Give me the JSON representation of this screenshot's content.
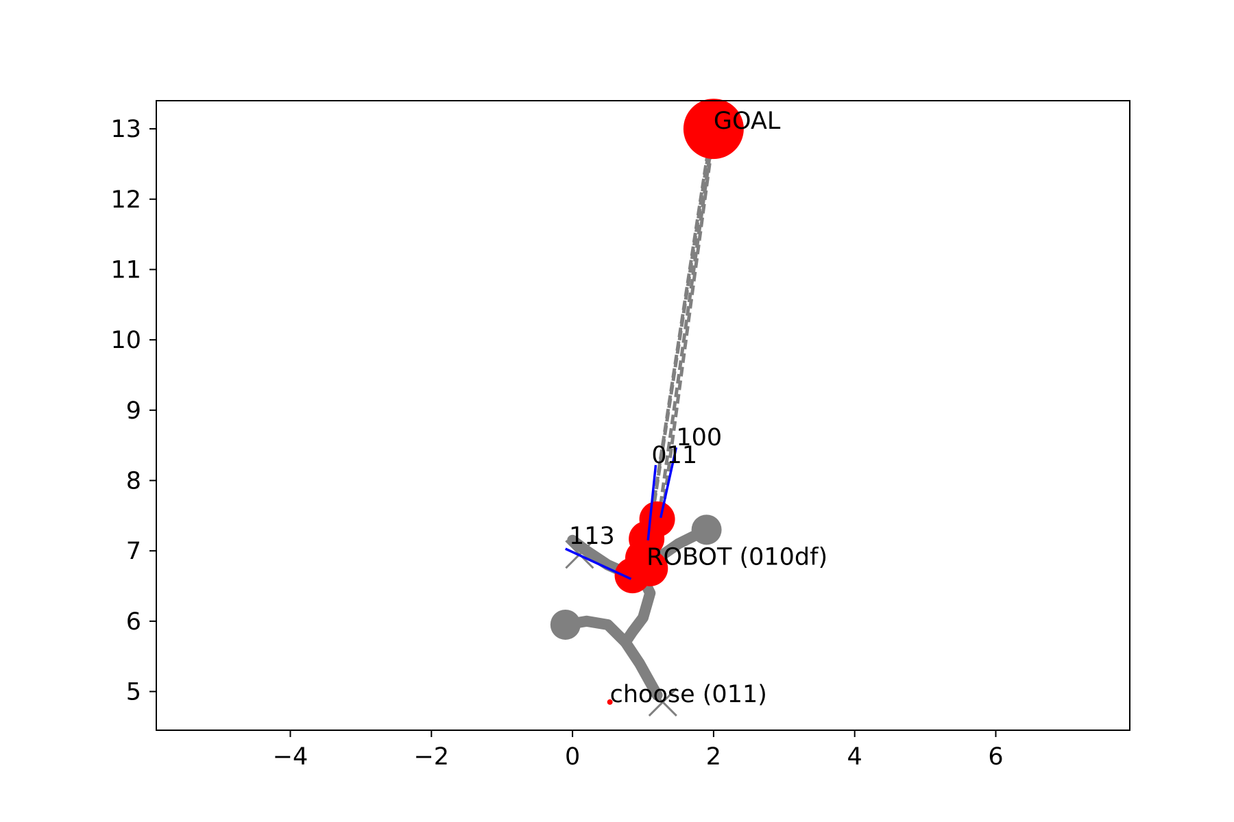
{
  "chart_data": {
    "type": "scatter",
    "title": "",
    "xlabel": "",
    "ylabel": "",
    "xlim": [
      -5.9,
      7.9
    ],
    "ylim": [
      4.45,
      13.4
    ],
    "xticks": [
      -4,
      -2,
      0,
      2,
      4,
      6
    ],
    "xtick_labels": [
      "−4",
      "−2",
      "0",
      "2",
      "4",
      "6"
    ],
    "yticks": [
      5,
      6,
      7,
      8,
      9,
      10,
      11,
      12,
      13
    ],
    "ytick_labels": [
      "5",
      "6",
      "7",
      "8",
      "9",
      "10",
      "11",
      "12",
      "13"
    ],
    "grid": false,
    "legend": "none",
    "colors": {
      "agent": "#ff0000",
      "path": "#808080",
      "heading": "#0000ff",
      "axis": "#000000"
    },
    "goal": {
      "x": 2.0,
      "y": 13.0,
      "label": "GOAL"
    },
    "robot_positions": [
      {
        "x": 1.2,
        "y": 7.45
      },
      {
        "x": 1.05,
        "y": 7.17
      },
      {
        "x": 1.0,
        "y": 6.9
      },
      {
        "x": 1.1,
        "y": 6.75
      },
      {
        "x": 0.85,
        "y": 6.65
      }
    ],
    "robot_label": {
      "x": 1.05,
      "y": 6.8,
      "text": "ROBOT (010df)"
    },
    "dashed_paths_to_goal": [
      [
        [
          1.07,
          7.15
        ],
        [
          1.97,
          13.0
        ]
      ],
      [
        [
          1.1,
          7.3
        ],
        [
          1.98,
          13.0
        ]
      ],
      [
        [
          1.22,
          7.45
        ],
        [
          2.0,
          13.0
        ]
      ],
      [
        [
          1.28,
          7.55
        ],
        [
          2.01,
          13.0
        ]
      ]
    ],
    "heading_lines": [
      {
        "points": [
          [
            0.83,
            6.6
          ],
          [
            -0.1,
            7.03
          ]
        ],
        "label": "113",
        "label_at": [
          -0.05,
          7.1
        ]
      },
      {
        "points": [
          [
            1.07,
            7.15
          ],
          [
            1.18,
            8.22
          ]
        ],
        "label": "011",
        "label_at": [
          1.12,
          8.25
        ]
      },
      {
        "points": [
          [
            1.25,
            7.47
          ],
          [
            1.47,
            8.47
          ]
        ],
        "label": "100",
        "label_at": [
          1.47,
          8.5
        ]
      }
    ],
    "trajectories": [
      [
        [
          1.0,
          6.6
        ],
        [
          1.1,
          6.4
        ],
        [
          1.0,
          6.05
        ],
        [
          0.85,
          5.85
        ],
        [
          0.75,
          5.7
        ]
      ],
      [
        [
          0.75,
          5.7
        ],
        [
          0.5,
          5.95
        ],
        [
          0.2,
          6.0
        ],
        [
          -0.1,
          5.95
        ]
      ],
      [
        [
          0.75,
          5.7
        ],
        [
          0.95,
          5.4
        ],
        [
          1.2,
          4.95
        ]
      ],
      [
        [
          1.0,
          6.75
        ],
        [
          1.5,
          7.1
        ],
        [
          1.9,
          7.3
        ]
      ],
      [
        [
          0.95,
          6.6
        ],
        [
          0.5,
          6.8
        ],
        [
          0.2,
          7.0
        ],
        [
          0.0,
          7.15
        ]
      ]
    ],
    "trajectory_endpoints": [
      {
        "x": -0.1,
        "y": 5.95
      },
      {
        "x": 1.9,
        "y": 7.3
      }
    ],
    "x_markers": [
      {
        "x": 0.1,
        "y": 6.95
      },
      {
        "x": 1.28,
        "y": 4.85
      }
    ],
    "choice_point": {
      "x": 0.53,
      "y": 4.85,
      "label": "choose (011)"
    }
  }
}
